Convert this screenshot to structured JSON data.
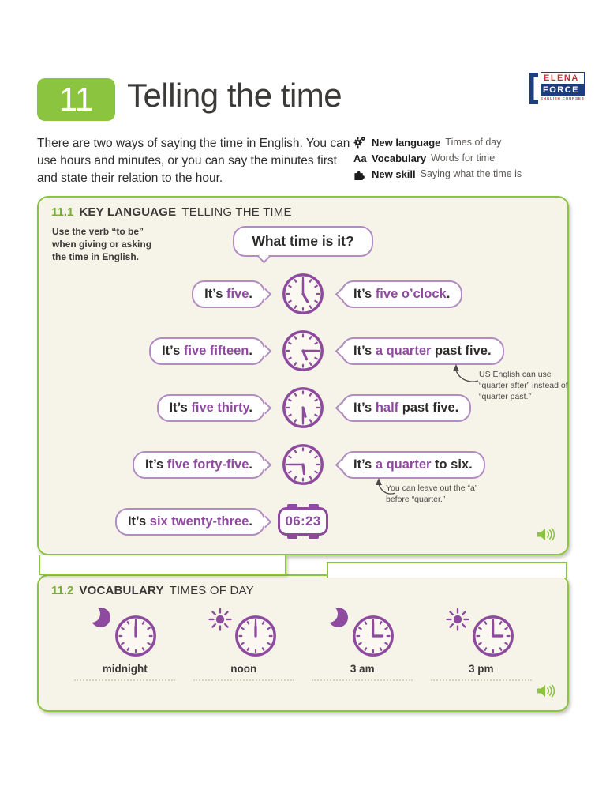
{
  "colors": {
    "green": "#8bc53f",
    "purple": "#8e4a9e",
    "bubble_border": "#b18cc2",
    "cream_background": "#f6f3e8",
    "clock_face": "#faf8f0",
    "logo_navy": "#1d3e7e",
    "logo_red": "#cf2c33"
  },
  "header": {
    "lesson_number": "11",
    "title": "Telling the time",
    "intro": "There are two ways of saying the time in English. You can use hours and minutes, or you can say the minutes first and state their relation to the hour.",
    "aa_glyph": "Aa",
    "objectives": [
      {
        "label": "New language",
        "value": "Times of day"
      },
      {
        "label": "Vocabulary",
        "value": "Words for time"
      },
      {
        "label": "New skill",
        "value": "Saying what the time is"
      }
    ],
    "logo": {
      "top": "ELENA",
      "middle": "FORCE",
      "tagline": "ENGLISH COURSES"
    }
  },
  "section1": {
    "number": "11.1",
    "heading_bold": "KEY LANGUAGE",
    "heading_rest": "TELLING THE TIME",
    "side_note": "Use the verb “to be” when giving or asking the time in English.",
    "question": "What time is it?",
    "rows": [
      {
        "left": {
          "pre": "It’s ",
          "hl": "five",
          "post": "."
        },
        "time": "5:00",
        "right": {
          "pre": "It’s ",
          "hl": "five o’clock",
          "post": "."
        }
      },
      {
        "left": {
          "pre": "It’s ",
          "hl": "five fifteen",
          "post": "."
        },
        "time": "5:15",
        "right": {
          "pre": "It’s ",
          "hl": "a quarter",
          "post": " past five."
        }
      },
      {
        "left": {
          "pre": "It’s ",
          "hl": "five thirty",
          "post": "."
        },
        "time": "5:30",
        "right": {
          "pre": "It’s ",
          "hl": "half",
          "post": " past five."
        }
      },
      {
        "left": {
          "pre": "It’s ",
          "hl": "five forty-five",
          "post": "."
        },
        "time": "5:45",
        "right": {
          "pre": "It’s ",
          "hl": "a quarter",
          "post": " to six."
        }
      },
      {
        "left": {
          "pre": "It’s ",
          "hl": "six twenty-three",
          "post": "."
        },
        "digital": "06:23"
      }
    ],
    "annotations": [
      "US English can use “quarter after” instead of “quarter past.”",
      "You can leave out the “a” before “quarter.”"
    ]
  },
  "section2": {
    "number": "11.2",
    "heading_bold": "VOCABULARY",
    "heading_rest": "TIMES OF DAY",
    "items": [
      {
        "icon": "moon",
        "time": "12:00",
        "label": "midnight"
      },
      {
        "icon": "sun",
        "time": "12:00",
        "label": "noon"
      },
      {
        "icon": "moon",
        "time": "3:00",
        "label": "3 am"
      },
      {
        "icon": "sun",
        "time": "3:00",
        "label": "3 pm"
      }
    ]
  }
}
